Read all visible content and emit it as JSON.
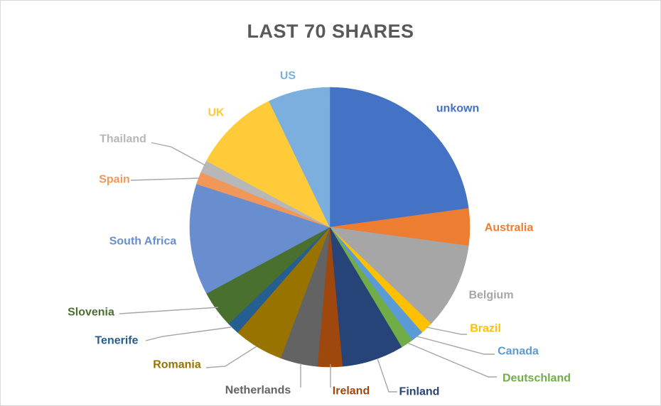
{
  "chart_data": {
    "type": "pie",
    "title": "LAST 70 SHARES",
    "total_shares": 70,
    "start_angle_deg": 0,
    "direction": "clockwise",
    "legend": "none",
    "slices": [
      {
        "label": "unkown",
        "value": 16,
        "color": "#4472C4"
      },
      {
        "label": "Australia",
        "value": 3,
        "color": "#ED7D31"
      },
      {
        "label": "Belgium",
        "value": 7,
        "color": "#A6A6A6"
      },
      {
        "label": "Brazil",
        "value": 1,
        "color": "#FFC000"
      },
      {
        "label": "Canada",
        "value": 1,
        "color": "#5B9BD5"
      },
      {
        "label": "Deutschland",
        "value": 1,
        "color": "#70AD47"
      },
      {
        "label": "Finland",
        "value": 5,
        "color": "#264478"
      },
      {
        "label": "Ireland",
        "value": 2,
        "color": "#9E480E"
      },
      {
        "label": "Netherlands",
        "value": 3,
        "color": "#636363"
      },
      {
        "label": "Romania",
        "value": 4,
        "color": "#997300"
      },
      {
        "label": "Tenerife",
        "value": 1,
        "color": "#255E91"
      },
      {
        "label": "Slovenia",
        "value": 3,
        "color": "#4A7030"
      },
      {
        "label": "South Africa",
        "value": 9,
        "color": "#698ED0"
      },
      {
        "label": "Spain",
        "value": 1,
        "color": "#F1975A"
      },
      {
        "label": "Thailand",
        "value": 1,
        "color": "#B7B7B7"
      },
      {
        "label": "UK",
        "value": 7,
        "color": "#FFCB38"
      },
      {
        "label": "US",
        "value": 5,
        "color": "#7CAFDD"
      }
    ]
  },
  "styles": {
    "title_color": "#595959",
    "leader_line_color": "#A6A6A6",
    "background": "#FFFFFF",
    "border_color": "#D9D9D9"
  }
}
